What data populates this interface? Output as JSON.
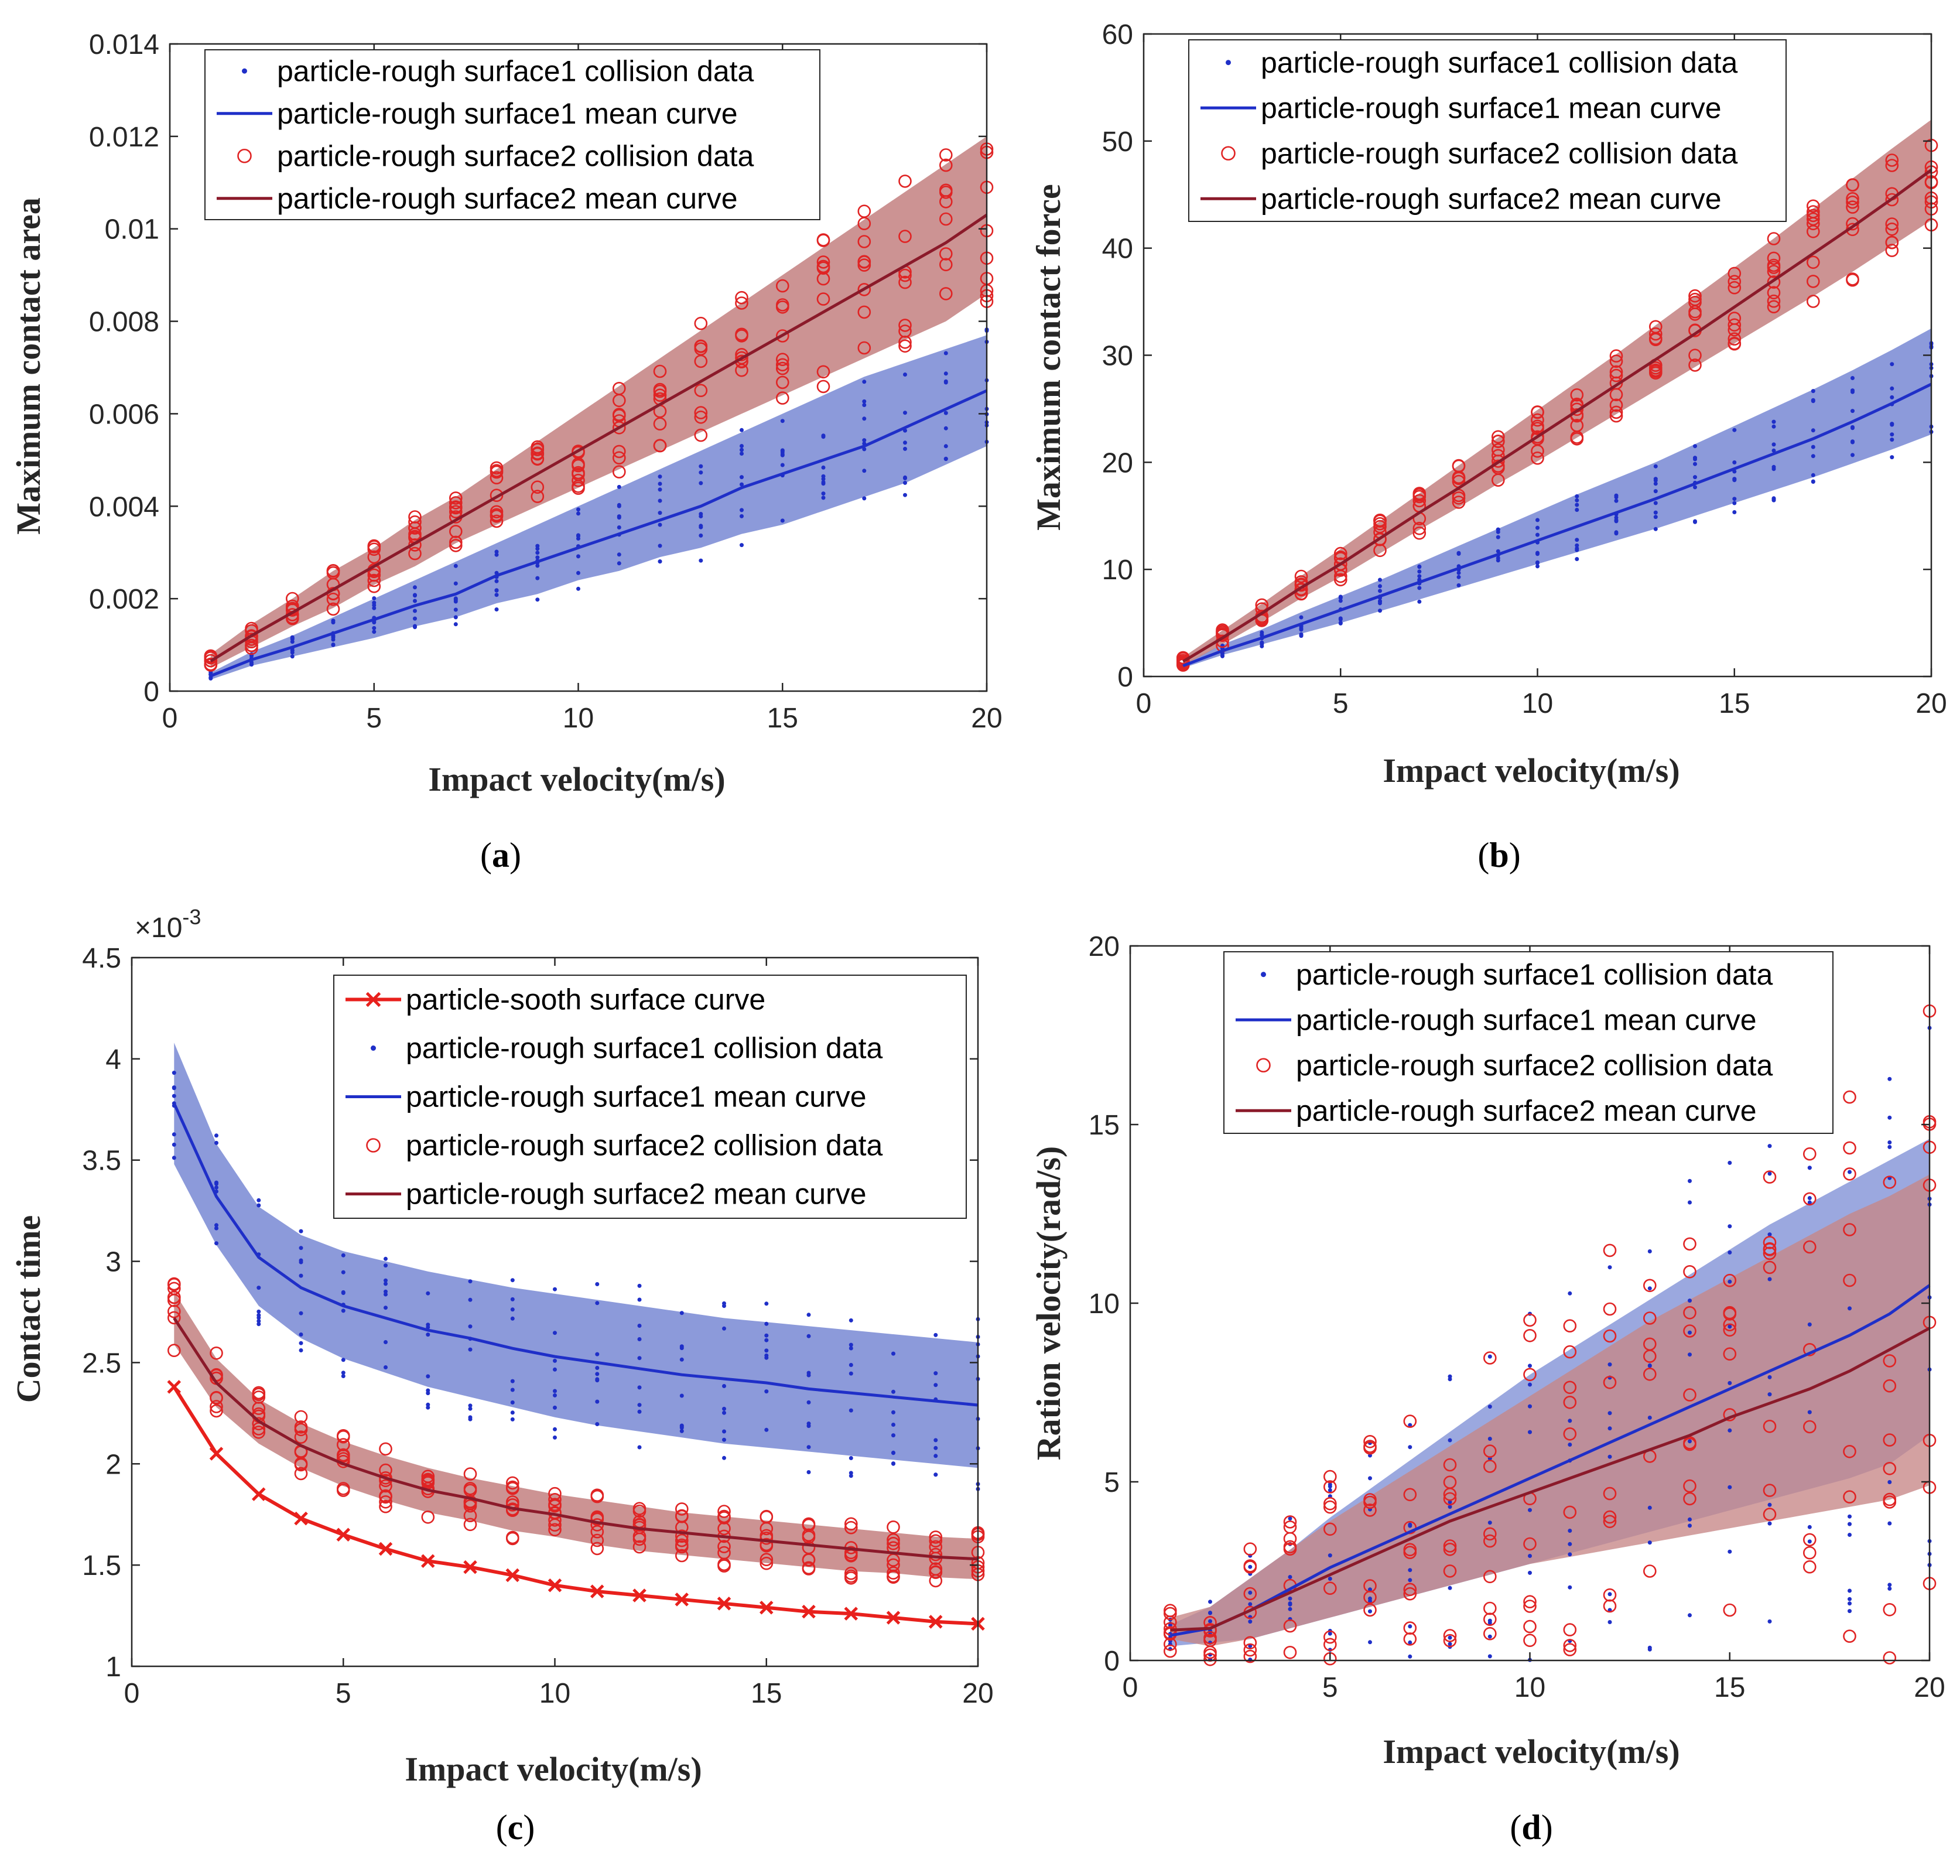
{
  "colors": {
    "blue": "#1f2fc8",
    "blue_band": "#7f8fd6",
    "red_marker": "#e02424",
    "dark_red": "#8b1a2a",
    "red_band": "#c78787",
    "smooth_red": "#e8201c",
    "axis": "#262626"
  },
  "chart_data": [
    {
      "id": "a",
      "type": "scatter",
      "caption": "a",
      "xlabel": "Impact velocity(m/s)",
      "ylabel": "Maximum contact area",
      "xlim": [
        0,
        20
      ],
      "ylim": [
        0,
        0.014
      ],
      "xticks": [
        0,
        5,
        10,
        15,
        20
      ],
      "xtick_labels": [
        "0",
        "5",
        "10",
        "15",
        "20"
      ],
      "yticks": [
        0,
        0.002,
        0.004,
        0.006,
        0.008,
        0.01,
        0.012,
        0.014
      ],
      "ytick_labels": [
        "0",
        "0.002",
        "0.004",
        "0.006",
        "0.008",
        "0.01",
        "0.012",
        "0.014"
      ],
      "legend": [
        {
          "label": "particle-rough surface1 collision data",
          "style": "dot",
          "color": "blue"
        },
        {
          "label": "particle-rough surface1 mean curve",
          "style": "line",
          "color": "blue"
        },
        {
          "label": "particle-rough surface2 collision data",
          "style": "circle",
          "color": "red_marker"
        },
        {
          "label": "particle-rough surface2 mean curve",
          "style": "line",
          "color": "dark_red"
        }
      ],
      "legend_location": "top-left",
      "x": [
        1,
        2,
        3,
        4,
        5,
        6,
        7,
        8,
        9,
        10,
        11,
        12,
        13,
        14,
        15,
        16,
        17,
        18,
        19,
        20
      ],
      "series": [
        {
          "name": "particle-rough surface1 mean curve",
          "color": "blue",
          "band_color": "blue_band",
          "values": [
            0.00033,
            0.00068,
            0.00095,
            0.00125,
            0.00155,
            0.00185,
            0.0021,
            0.0025,
            0.0028,
            0.0031,
            0.0034,
            0.0037,
            0.004,
            0.0044,
            0.0047,
            0.005,
            0.0053,
            0.0057,
            0.0061,
            0.0065
          ],
          "upper": [
            0.0004,
            0.00085,
            0.0012,
            0.0016,
            0.002,
            0.0024,
            0.0028,
            0.0032,
            0.0036,
            0.004,
            0.0044,
            0.0048,
            0.0052,
            0.0056,
            0.006,
            0.0064,
            0.0068,
            0.0071,
            0.0074,
            0.0077
          ],
          "lower": [
            0.00025,
            0.00055,
            0.00075,
            0.00095,
            0.00115,
            0.0014,
            0.0016,
            0.0019,
            0.0021,
            0.0024,
            0.0026,
            0.0029,
            0.0031,
            0.0034,
            0.0036,
            0.0039,
            0.0042,
            0.0045,
            0.0049,
            0.0053
          ],
          "points": {
            "style": "dot",
            "color": "blue",
            "spread": 0.14
          }
        },
        {
          "name": "particle-rough surface2 mean curve",
          "color": "dark_red",
          "band_color": "red_band",
          "values": [
            0.00065,
            0.0012,
            0.0017,
            0.0022,
            0.0027,
            0.0032,
            0.0037,
            0.0042,
            0.0047,
            0.0052,
            0.0057,
            0.0062,
            0.0067,
            0.0072,
            0.0077,
            0.0082,
            0.0087,
            0.0092,
            0.0097,
            0.0103
          ],
          "upper": [
            0.0008,
            0.00145,
            0.002,
            0.0026,
            0.0031,
            0.0037,
            0.0042,
            0.0048,
            0.0054,
            0.006,
            0.0066,
            0.0072,
            0.0078,
            0.0084,
            0.009,
            0.0096,
            0.0102,
            0.0108,
            0.0114,
            0.012
          ],
          "lower": [
            0.0005,
            0.00095,
            0.0014,
            0.0018,
            0.0023,
            0.0027,
            0.0032,
            0.0036,
            0.004,
            0.0044,
            0.0048,
            0.0052,
            0.0056,
            0.006,
            0.0064,
            0.0068,
            0.0072,
            0.0076,
            0.008,
            0.0086
          ],
          "points": {
            "style": "circle",
            "color": "red_marker",
            "spread": 0.16
          }
        }
      ]
    },
    {
      "id": "b",
      "type": "scatter",
      "caption": "b",
      "xlabel": "Impact velocity(m/s)",
      "ylabel": "Maximum contact force",
      "xlim": [
        0,
        20
      ],
      "ylim": [
        0,
        60
      ],
      "xticks": [
        0,
        5,
        10,
        15,
        20
      ],
      "xtick_labels": [
        "0",
        "5",
        "10",
        "15",
        "20"
      ],
      "yticks": [
        0,
        10,
        20,
        30,
        40,
        50,
        60
      ],
      "ytick_labels": [
        "0",
        "10",
        "20",
        "30",
        "40",
        "50",
        "60"
      ],
      "legend": [
        {
          "label": "particle-rough surface1 collision data",
          "style": "dot",
          "color": "blue"
        },
        {
          "label": "particle-rough surface1 mean curve",
          "style": "line",
          "color": "blue"
        },
        {
          "label": "particle-rough surface2 collision data",
          "style": "circle",
          "color": "red_marker"
        },
        {
          "label": "particle-rough surface2 mean curve",
          "style": "line",
          "color": "dark_red"
        }
      ],
      "legend_location": "top-left",
      "x": [
        1,
        2,
        3,
        4,
        5,
        6,
        7,
        8,
        9,
        10,
        11,
        12,
        13,
        14,
        15,
        16,
        17,
        18,
        19,
        20
      ],
      "series": [
        {
          "name": "particle-rough surface1 mean curve",
          "color": "blue",
          "band_color": "blue_band",
          "values": [
            1.0,
            2.4,
            3.6,
            4.9,
            6.2,
            7.5,
            8.8,
            10.1,
            11.4,
            12.7,
            14.0,
            15.3,
            16.6,
            18.0,
            19.4,
            20.8,
            22.2,
            23.8,
            25.5,
            27.3
          ],
          "upper": [
            1.2,
            3.0,
            4.4,
            6.0,
            7.5,
            9.0,
            10.6,
            12.2,
            13.8,
            15.4,
            17.0,
            18.5,
            20.0,
            21.7,
            23.4,
            25.1,
            26.8,
            28.6,
            30.5,
            32.5
          ],
          "lower": [
            0.8,
            2.0,
            3.0,
            4.0,
            5.0,
            6.1,
            7.2,
            8.3,
            9.4,
            10.5,
            11.6,
            12.7,
            13.8,
            15.0,
            16.2,
            17.4,
            18.6,
            19.9,
            21.2,
            22.6
          ],
          "points": {
            "style": "dot",
            "color": "blue",
            "spread": 0.14
          }
        },
        {
          "name": "particle-rough surface2 mean curve",
          "color": "dark_red",
          "band_color": "red_band",
          "values": [
            1.4,
            3.6,
            5.9,
            8.3,
            10.5,
            12.9,
            15.3,
            17.6,
            20.0,
            22.4,
            24.8,
            27.2,
            29.6,
            32.0,
            34.5,
            37.0,
            39.5,
            42.0,
            44.6,
            47.3
          ],
          "upper": [
            1.8,
            4.3,
            6.8,
            9.4,
            11.9,
            14.5,
            17.1,
            19.7,
            22.3,
            24.9,
            27.5,
            30.1,
            32.8,
            35.5,
            38.2,
            40.9,
            43.7,
            46.5,
            49.3,
            52.0
          ],
          "lower": [
            1.0,
            3.0,
            5.1,
            7.3,
            9.3,
            11.5,
            13.7,
            15.8,
            18.0,
            20.1,
            22.3,
            24.5,
            26.7,
            28.9,
            31.1,
            33.3,
            35.5,
            37.8,
            40.2,
            42.6
          ],
          "points": {
            "style": "circle",
            "color": "red_marker",
            "spread": 0.15
          }
        }
      ]
    },
    {
      "id": "c",
      "type": "scatter",
      "caption": "c",
      "xlabel": "Impact velocity(m/s)",
      "ylabel": "Contact time",
      "exponent_label": "×10",
      "exponent_power": "-3",
      "xlim": [
        0,
        20
      ],
      "ylim": [
        1,
        4.5
      ],
      "xticks": [
        0,
        5,
        10,
        15,
        20
      ],
      "xtick_labels": [
        "0",
        "5",
        "10",
        "15",
        "20"
      ],
      "yticks": [
        1,
        1.5,
        2,
        2.5,
        3,
        3.5,
        4,
        4.5
      ],
      "ytick_labels": [
        "1",
        "1.5",
        "2",
        "2.5",
        "3",
        "3.5",
        "4",
        "4.5"
      ],
      "legend": [
        {
          "label": "particle-sooth surface curve",
          "style": "xline",
          "color": "smooth_red"
        },
        {
          "label": "particle-rough surface1 collision data",
          "style": "dot",
          "color": "blue"
        },
        {
          "label": "particle-rough surface1 mean curve",
          "style": "line",
          "color": "blue"
        },
        {
          "label": "particle-rough surface2 collision data",
          "style": "circle",
          "color": "red_marker"
        },
        {
          "label": "particle-rough surface2 mean curve",
          "style": "line",
          "color": "dark_red"
        }
      ],
      "legend_location": "top-right",
      "x": [
        1,
        2,
        3,
        4,
        5,
        6,
        7,
        8,
        9,
        10,
        11,
        12,
        13,
        14,
        15,
        16,
        17,
        18,
        19,
        20
      ],
      "series": [
        {
          "name": "particle-rough surface1 mean curve",
          "color": "blue",
          "band_color": "blue_band",
          "values": [
            3.78,
            3.32,
            3.02,
            2.87,
            2.78,
            2.72,
            2.66,
            2.62,
            2.57,
            2.53,
            2.5,
            2.47,
            2.44,
            2.42,
            2.4,
            2.37,
            2.35,
            2.33,
            2.31,
            2.29
          ],
          "upper": [
            4.08,
            3.58,
            3.27,
            3.13,
            3.05,
            3.0,
            2.95,
            2.91,
            2.87,
            2.84,
            2.81,
            2.78,
            2.75,
            2.72,
            2.7,
            2.68,
            2.66,
            2.64,
            2.62,
            2.6
          ],
          "lower": [
            3.48,
            3.08,
            2.78,
            2.62,
            2.52,
            2.45,
            2.38,
            2.33,
            2.28,
            2.23,
            2.19,
            2.16,
            2.13,
            2.1,
            2.08,
            2.06,
            2.04,
            2.02,
            2.0,
            1.98
          ],
          "points": {
            "style": "dot",
            "color": "blue",
            "spread": 0.38
          }
        },
        {
          "name": "particle-rough surface2 mean curve",
          "color": "dark_red",
          "band_color": "red_band",
          "values": [
            2.72,
            2.4,
            2.21,
            2.09,
            2.0,
            1.93,
            1.87,
            1.83,
            1.78,
            1.75,
            1.71,
            1.68,
            1.66,
            1.64,
            1.62,
            1.6,
            1.58,
            1.56,
            1.54,
            1.53
          ],
          "upper": [
            2.85,
            2.52,
            2.32,
            2.2,
            2.11,
            2.04,
            1.98,
            1.93,
            1.89,
            1.85,
            1.82,
            1.79,
            1.76,
            1.74,
            1.72,
            1.7,
            1.68,
            1.66,
            1.64,
            1.63
          ],
          "lower": [
            2.59,
            2.28,
            2.1,
            1.98,
            1.89,
            1.82,
            1.76,
            1.72,
            1.67,
            1.64,
            1.6,
            1.57,
            1.55,
            1.53,
            1.51,
            1.49,
            1.47,
            1.46,
            1.44,
            1.43
          ],
          "points": {
            "style": "circle",
            "color": "red_marker",
            "spread": 0.38
          }
        },
        {
          "name": "particle-sooth surface curve",
          "color": "smooth_red",
          "style": "xline",
          "values": [
            2.38,
            2.05,
            1.85,
            1.73,
            1.65,
            1.58,
            1.52,
            1.49,
            1.45,
            1.4,
            1.37,
            1.35,
            1.33,
            1.31,
            1.29,
            1.27,
            1.26,
            1.24,
            1.22,
            1.21
          ]
        }
      ]
    },
    {
      "id": "d",
      "type": "scatter",
      "caption": "d",
      "xlabel": "Impact velocity(m/s)",
      "ylabel": "Ration velocity(rad/s)",
      "xlim": [
        0,
        20
      ],
      "ylim": [
        0,
        20
      ],
      "xticks": [
        0,
        5,
        10,
        15,
        20
      ],
      "xtick_labels": [
        "0",
        "5",
        "10",
        "15",
        "20"
      ],
      "yticks": [
        0,
        5,
        10,
        15,
        20
      ],
      "ytick_labels": [
        "0",
        "5",
        "10",
        "15",
        "20"
      ],
      "legend": [
        {
          "label": "particle-rough surface1 collision data",
          "style": "dot",
          "color": "blue"
        },
        {
          "label": "particle-rough surface1 mean curve",
          "style": "line",
          "color": "blue"
        },
        {
          "label": "particle-rough surface2 collision data",
          "style": "circle",
          "color": "red_marker"
        },
        {
          "label": "particle-rough surface2 mean curve",
          "style": "line",
          "color": "dark_red"
        }
      ],
      "legend_location": "top-right",
      "x": [
        1,
        2,
        3,
        4,
        5,
        6,
        7,
        8,
        9,
        10,
        11,
        12,
        13,
        14,
        15,
        16,
        17,
        18,
        19,
        20
      ],
      "series": [
        {
          "name": "particle-rough surface1 mean curve",
          "color": "blue",
          "band_color": "blue_band",
          "values": [
            0.7,
            0.9,
            1.4,
            2.0,
            2.6,
            3.1,
            3.6,
            4.1,
            4.6,
            5.1,
            5.6,
            6.1,
            6.6,
            7.1,
            7.6,
            8.1,
            8.6,
            9.1,
            9.7,
            10.5
          ],
          "upper": [
            1.0,
            1.5,
            2.3,
            3.1,
            4.0,
            4.8,
            5.6,
            6.4,
            7.2,
            8.0,
            8.7,
            9.4,
            10.1,
            10.8,
            11.5,
            12.2,
            12.8,
            13.4,
            14.0,
            14.6
          ],
          "lower": [
            0.4,
            0.5,
            0.6,
            0.9,
            1.2,
            1.5,
            1.8,
            2.1,
            2.4,
            2.7,
            3.0,
            3.3,
            3.6,
            3.9,
            4.2,
            4.5,
            4.8,
            5.1,
            5.5,
            6.3
          ],
          "points": {
            "style": "dot",
            "color": "blue",
            "spread": 0.95
          }
        },
        {
          "name": "particle-rough surface2 mean curve",
          "color": "dark_red",
          "band_color": "red_band",
          "values": [
            0.85,
            0.9,
            1.4,
            1.9,
            2.4,
            2.9,
            3.4,
            3.9,
            4.3,
            4.7,
            5.1,
            5.5,
            5.9,
            6.3,
            6.8,
            7.2,
            7.6,
            8.1,
            8.7,
            9.3
          ],
          "upper": [
            1.2,
            1.5,
            2.3,
            3.1,
            3.9,
            4.6,
            5.3,
            6.0,
            6.7,
            7.4,
            8.1,
            8.8,
            9.5,
            10.1,
            10.7,
            11.3,
            11.9,
            12.5,
            13.0,
            13.6
          ],
          "lower": [
            0.6,
            0.4,
            0.6,
            0.9,
            1.2,
            1.5,
            1.8,
            2.1,
            2.4,
            2.7,
            2.9,
            3.1,
            3.3,
            3.5,
            3.7,
            3.9,
            4.1,
            4.3,
            4.5,
            4.9
          ],
          "points": {
            "style": "circle",
            "color": "red_marker",
            "spread": 1.1
          }
        }
      ]
    }
  ]
}
